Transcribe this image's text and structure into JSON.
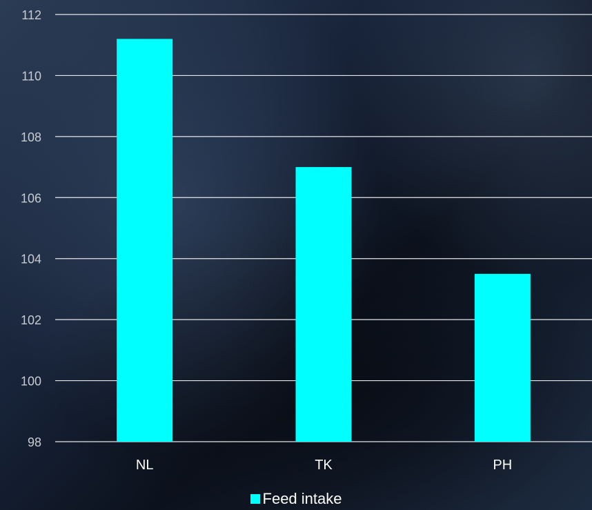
{
  "chart_data": {
    "type": "bar",
    "categories": [
      "NL",
      "TK",
      "PH"
    ],
    "series": [
      {
        "name": "Feed intake",
        "values": [
          111.2,
          107.0,
          103.5
        ],
        "color": "#00ffff"
      }
    ],
    "ylim": [
      98,
      112
    ],
    "yticks": [
      98,
      100,
      102,
      104,
      106,
      108,
      110,
      112
    ],
    "grid": true,
    "legend_position": "bottom",
    "title": "",
    "xlabel": "",
    "ylabel": ""
  }
}
